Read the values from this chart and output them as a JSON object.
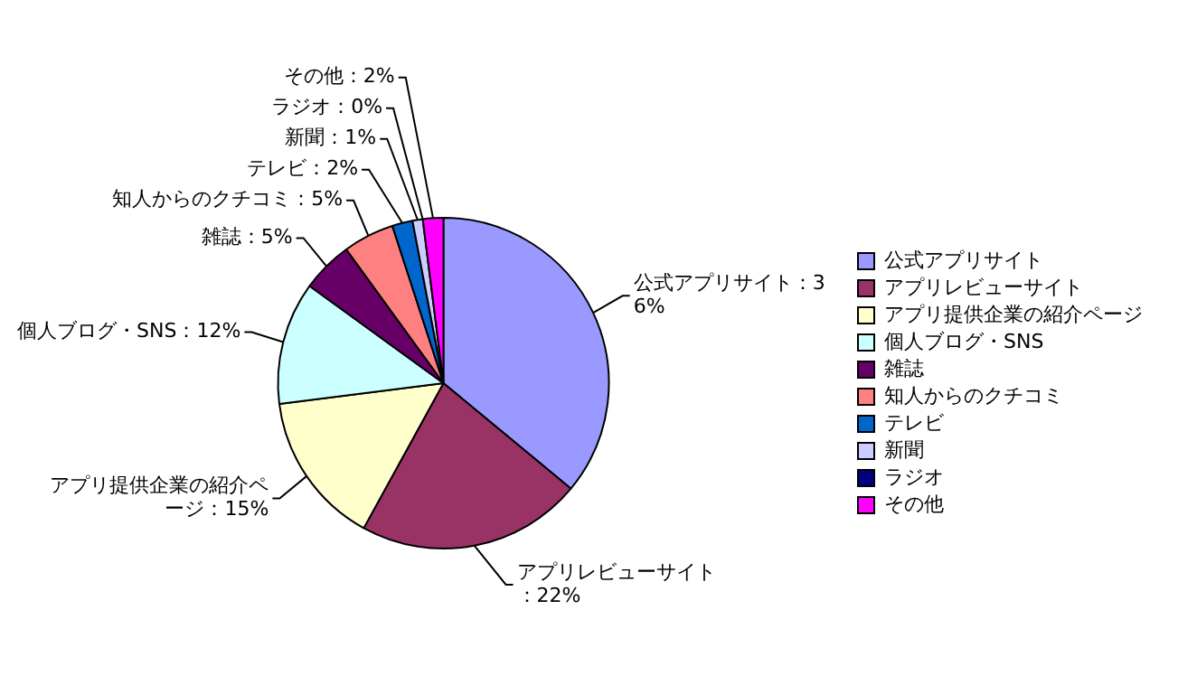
{
  "chart_data": {
    "type": "pie",
    "categories": [
      "公式アプリサイト",
      "アプリレビューサイト",
      "アプリ提供企業の紹介ページ",
      "個人ブログ・SNS",
      "雑誌",
      "知人からのクチコミ",
      "テレビ",
      "新聞",
      "ラジオ",
      "その他"
    ],
    "values": [
      36,
      22,
      15,
      12,
      5,
      5,
      2,
      1,
      0,
      2
    ],
    "colors": [
      "#9999ff",
      "#993366",
      "#ffffcc",
      "#ccffff",
      "#660066",
      "#ff8080",
      "#0066cc",
      "#ccccff",
      "#000080",
      "#ff00ff"
    ],
    "value_labels": [
      "公式アプリサイト：36%",
      "アプリレビューサイト：22%",
      "アプリ提供企業の紹介ページ：15%",
      "個人ブログ・SNS：12%",
      "雑誌：5%",
      "知人からのクチコミ：5%",
      "テレビ：2%",
      "新聞：1%",
      "ラジオ：0%",
      "その他：2%"
    ],
    "legend": "right"
  }
}
